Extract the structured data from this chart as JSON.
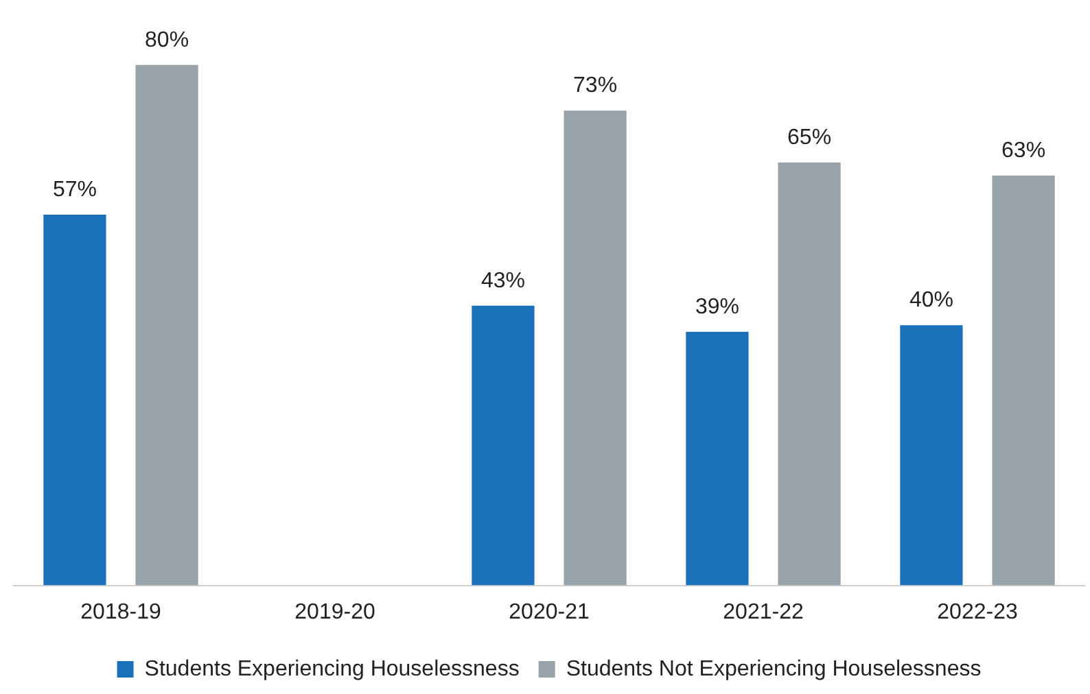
{
  "chart_data": {
    "type": "bar",
    "categories": [
      "2018-19",
      "2019-20",
      "2020-21",
      "2021-22",
      "2022-23"
    ],
    "series": [
      {
        "name": "Students Experiencing Houselessness",
        "color": "#1b70ba",
        "values": [
          57,
          null,
          43,
          39,
          40
        ],
        "value_labels": [
          "57%",
          null,
          "43%",
          "39%",
          "40%"
        ]
      },
      {
        "name": "Students Not Experiencing Houselessness",
        "color": "#98a3a9",
        "values": [
          80,
          null,
          73,
          65,
          63
        ],
        "value_labels": [
          "80%",
          null,
          "73%",
          "65%",
          "63%"
        ]
      }
    ],
    "legend": "bottom",
    "grid": false
  }
}
